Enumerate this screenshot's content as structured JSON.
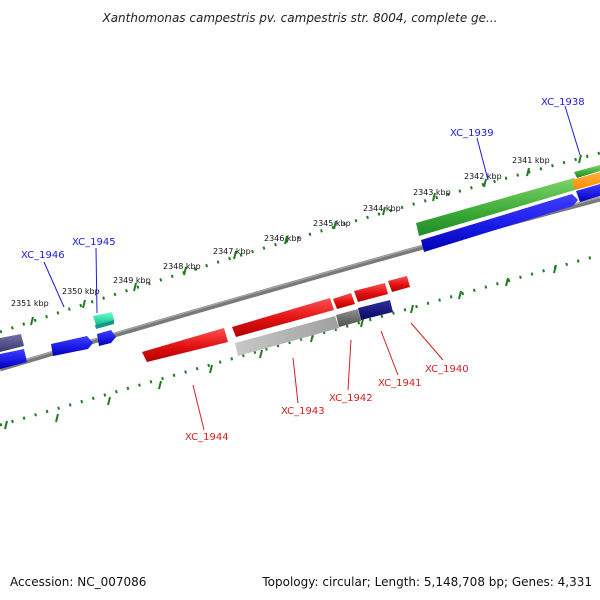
{
  "title": "Xanthomonas campestris pv. campestris str. 8004, complete ge...",
  "accession": "Accession: NC_007086",
  "topology": "Topology: circular; Length: 5,148,708 bp; Genes: 4,331",
  "colors": {
    "backbone": "#7a7a7a",
    "tick": "#207a20",
    "forward_label": "#1c1cd9",
    "reverse_label": "#d42020",
    "gene_red": "#e01010",
    "gene_blue": "#1a1ae6",
    "gene_green": "#3aaa35",
    "gene_orange": "#ff8c00",
    "gene_teal": "#20e0a8",
    "gene_navy": "#101080",
    "gene_slate": "#50508a",
    "gene_grey": "#b0b0b0",
    "gene_darkgrey": "#606060"
  },
  "scale": {
    "ticks": [
      "2341 kbp",
      "2342 kbp",
      "2343 kbp",
      "2344 kbp",
      "2345 kbp",
      "2346 kbp",
      "2347 kbp",
      "2348 kbp",
      "2349 kbp",
      "2350 kbp",
      "2351 kbp"
    ]
  },
  "forward_labels": [
    "XC_1938",
    "XC_1939",
    "XC_1945",
    "XC_1946"
  ],
  "reverse_labels": [
    "XC_1940",
    "XC_1941",
    "XC_1942",
    "XC_1943",
    "XC_1944"
  ]
}
